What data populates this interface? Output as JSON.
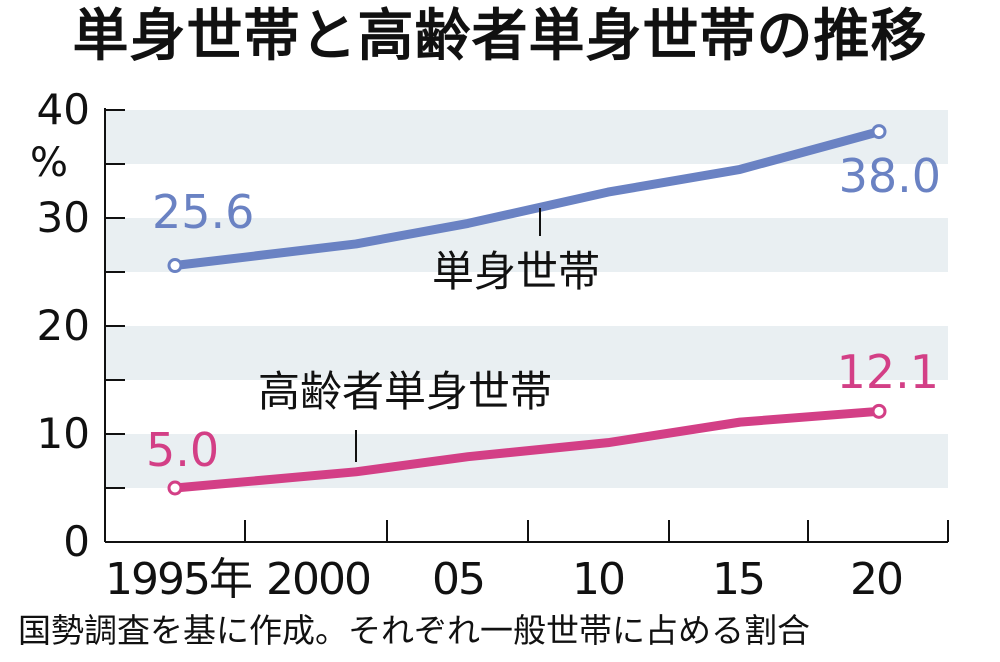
{
  "title": "単身世帯と高齢者単身世帯の推移",
  "note": "国勢調査を基に作成。それぞれ一般世帯に占める割合",
  "y_unit": "%",
  "colors": {
    "single": "#6a82c3",
    "elderly": "#d33f86",
    "band": "#e9eff2",
    "axis": "#111111"
  },
  "chart_data": {
    "type": "line",
    "title": "単身世帯と高齢者単身世帯の推移",
    "x": [
      1995,
      2000,
      2005,
      2010,
      2015,
      2020
    ],
    "x_tick_labels": [
      "1995年",
      "2000",
      "05",
      "10",
      "15",
      "20"
    ],
    "y_ticks": [
      0,
      10,
      20,
      30,
      40
    ],
    "ylim": [
      0,
      40
    ],
    "yunit": "%",
    "grid": "alternating horizontal bands",
    "series": [
      {
        "name": "単身世帯",
        "color": "#6a82c3",
        "values": [
          25.6,
          27.6,
          29.5,
          32.4,
          34.5,
          38.0
        ],
        "labels": {
          "first": "25.6",
          "last": "38.0"
        }
      },
      {
        "name": "高齢者単身世帯",
        "color": "#d33f86",
        "values": [
          5.0,
          6.5,
          7.9,
          9.2,
          11.1,
          12.1
        ],
        "labels": {
          "first": "5.0",
          "last": "12.1"
        }
      }
    ]
  }
}
